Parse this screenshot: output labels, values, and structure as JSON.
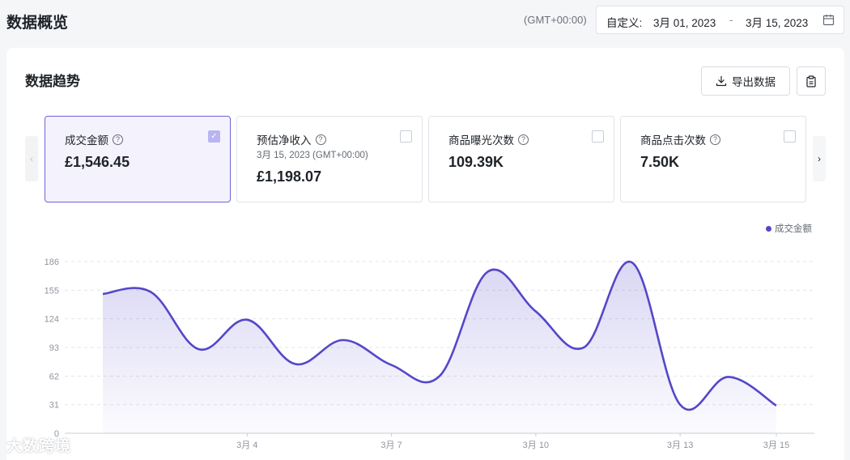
{
  "header": {
    "title": "数据概览",
    "timezone": "(GMT+00:00)",
    "date_range": {
      "label": "自定义:",
      "start": "3月 01, 2023",
      "separator": "-",
      "end": "3月 15, 2023"
    }
  },
  "section": {
    "title": "数据趋势",
    "export_label": "导出数据"
  },
  "metrics": [
    {
      "label": "成交金额",
      "value": "£1,546.45",
      "sub": "",
      "checked": true
    },
    {
      "label": "预估净收入",
      "value": "£1,198.07",
      "sub": "3月 15, 2023 (GMT+00:00)",
      "checked": false
    },
    {
      "label": "商品曝光次数",
      "value": "109.39K",
      "sub": "",
      "checked": false
    },
    {
      "label": "商品点击次数",
      "value": "7.50K",
      "sub": "",
      "checked": false
    }
  ],
  "watermark": "大数跨境",
  "colors": {
    "accent": "#5447c8",
    "active_bg": "#f4f3fd"
  },
  "chart_data": {
    "type": "area",
    "series": [
      {
        "name": "成交金额",
        "values": [
          151,
          153,
          91,
          123,
          75,
          101,
          74,
          62,
          175,
          132,
          93,
          185,
          31,
          61,
          30
        ]
      }
    ],
    "x": [
      "3月 1",
      "3月 2",
      "3月 3",
      "3月 4",
      "3月 5",
      "3月 6",
      "3月 7",
      "3月 8",
      "3月 9",
      "3月 10",
      "3月 11",
      "3月 12",
      "3月 13",
      "3月 14",
      "3月 15"
    ],
    "x_tick_labels": [
      "3月 4",
      "3月 7",
      "3月 10",
      "3月 13",
      "3月 15"
    ],
    "x_tick_indices": [
      3,
      6,
      9,
      12,
      14
    ],
    "y_ticks": [
      0,
      31,
      62,
      93,
      124,
      155,
      186
    ],
    "ylim": [
      0,
      186
    ],
    "legend": "成交金额",
    "legend_position": "top-right",
    "grid": true
  }
}
